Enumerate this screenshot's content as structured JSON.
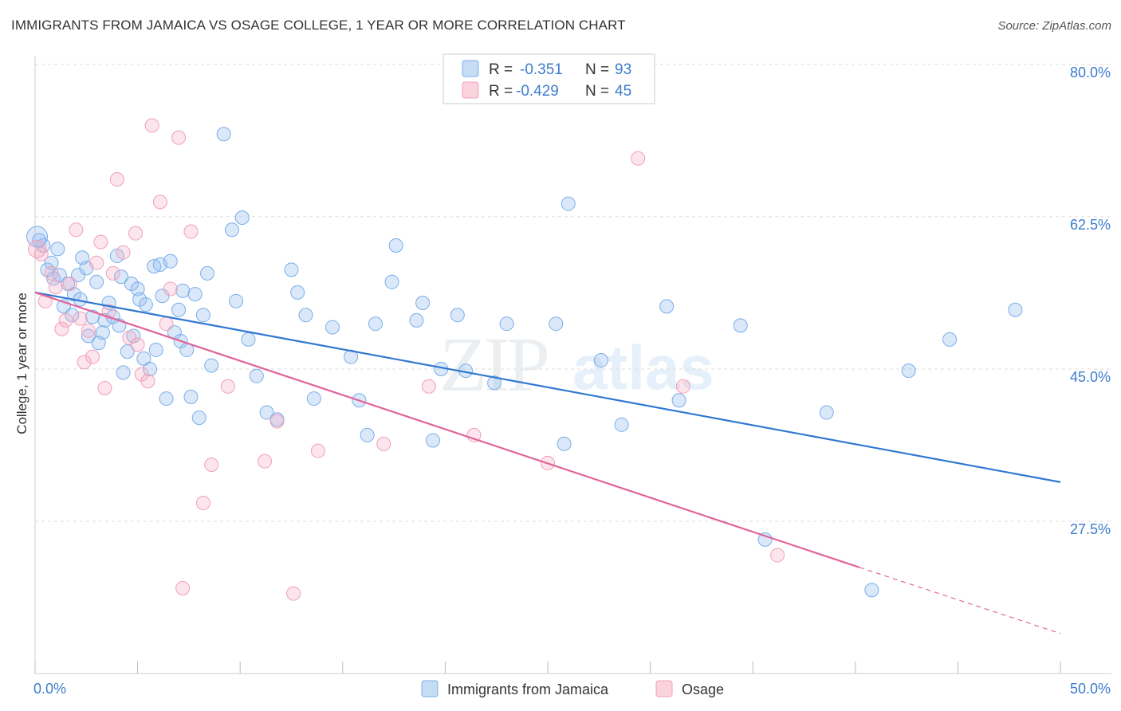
{
  "title": "IMMIGRANTS FROM JAMAICA VS OSAGE COLLEGE, 1 YEAR OR MORE CORRELATION CHART",
  "source": "Source: ZipAtlas.com",
  "watermark": {
    "zip": "ZIP",
    "atlas": "atlas"
  },
  "legend": {
    "rows": [
      {
        "r_label": "R =",
        "r_value": "-0.351",
        "n_label": "N =",
        "n_value": "93",
        "color": "#7aaee8"
      },
      {
        "r_label": "R =",
        "r_value": "-0.429",
        "n_label": "N =",
        "n_value": "45",
        "color": "#f0a0b8"
      }
    ]
  },
  "bottom_legend": [
    "Immigrants from Jamaica",
    "Osage"
  ],
  "chart_data": {
    "type": "scatter",
    "title": "IMMIGRANTS FROM JAMAICA VS OSAGE COLLEGE, 1 YEAR OR MORE CORRELATION CHART",
    "xlabel": "",
    "ylabel": "College, 1 year or more",
    "xlim": [
      0,
      50
    ],
    "ylim": [
      10,
      81
    ],
    "x_tick_labels": [
      "0.0%",
      "50.0%"
    ],
    "y_ticks": [
      27.5,
      45.0,
      62.5,
      80.0
    ],
    "y_tick_labels": [
      "27.5%",
      "45.0%",
      "62.5%",
      "80.0%"
    ],
    "grid": true,
    "series": [
      {
        "name": "Immigrants from Jamaica",
        "color": "#7aaee8",
        "trend": {
          "x": [
            0,
            50
          ],
          "y": [
            53.8,
            32.0
          ]
        },
        "points": [
          [
            0.2,
            59.8
          ],
          [
            0.4,
            59.2
          ],
          [
            0.6,
            56.4
          ],
          [
            0.8,
            57.2
          ],
          [
            0.9,
            55.4
          ],
          [
            1.1,
            58.8
          ],
          [
            1.2,
            55.8
          ],
          [
            1.4,
            52.2
          ],
          [
            1.6,
            54.8
          ],
          [
            1.8,
            51.2
          ],
          [
            1.9,
            53.6
          ],
          [
            2.1,
            55.8
          ],
          [
            2.2,
            53.0
          ],
          [
            2.3,
            57.8
          ],
          [
            2.5,
            56.6
          ],
          [
            2.6,
            48.8
          ],
          [
            2.8,
            51.0
          ],
          [
            3.0,
            55.0
          ],
          [
            3.1,
            48.0
          ],
          [
            3.3,
            49.2
          ],
          [
            3.4,
            50.6
          ],
          [
            3.6,
            52.6
          ],
          [
            3.8,
            51.0
          ],
          [
            4.0,
            58.0
          ],
          [
            4.1,
            50.0
          ],
          [
            4.2,
            55.6
          ],
          [
            4.3,
            44.6
          ],
          [
            4.5,
            47.0
          ],
          [
            4.7,
            54.8
          ],
          [
            4.8,
            48.8
          ],
          [
            5.0,
            54.2
          ],
          [
            5.1,
            53.0
          ],
          [
            5.3,
            46.2
          ],
          [
            5.4,
            52.4
          ],
          [
            5.6,
            45.0
          ],
          [
            5.8,
            56.8
          ],
          [
            5.9,
            47.2
          ],
          [
            6.1,
            57.0
          ],
          [
            6.2,
            53.4
          ],
          [
            6.4,
            41.6
          ],
          [
            6.6,
            57.4
          ],
          [
            6.8,
            49.2
          ],
          [
            7.0,
            51.8
          ],
          [
            7.1,
            48.2
          ],
          [
            7.2,
            54.0
          ],
          [
            7.4,
            47.2
          ],
          [
            7.6,
            41.8
          ],
          [
            7.8,
            53.6
          ],
          [
            8.0,
            39.4
          ],
          [
            8.2,
            51.2
          ],
          [
            8.4,
            56.0
          ],
          [
            8.6,
            45.4
          ],
          [
            9.2,
            72.0
          ],
          [
            9.6,
            61.0
          ],
          [
            9.8,
            52.8
          ],
          [
            10.1,
            62.4
          ],
          [
            10.4,
            48.4
          ],
          [
            10.8,
            44.2
          ],
          [
            11.3,
            40.0
          ],
          [
            11.8,
            39.2
          ],
          [
            12.5,
            56.4
          ],
          [
            12.8,
            53.8
          ],
          [
            13.2,
            51.2
          ],
          [
            13.6,
            41.6
          ],
          [
            14.5,
            49.8
          ],
          [
            15.4,
            46.4
          ],
          [
            15.8,
            41.4
          ],
          [
            16.2,
            37.4
          ],
          [
            16.6,
            50.2
          ],
          [
            17.4,
            55.0
          ],
          [
            17.6,
            59.2
          ],
          [
            18.6,
            50.6
          ],
          [
            18.9,
            52.6
          ],
          [
            19.4,
            36.8
          ],
          [
            19.8,
            45.0
          ],
          [
            20.6,
            51.2
          ],
          [
            21.0,
            44.8
          ],
          [
            22.4,
            43.4
          ],
          [
            23.0,
            50.2
          ],
          [
            25.4,
            50.2
          ],
          [
            25.8,
            36.4
          ],
          [
            26.0,
            64.0
          ],
          [
            27.6,
            46.0
          ],
          [
            28.6,
            38.6
          ],
          [
            30.8,
            52.2
          ],
          [
            31.4,
            41.4
          ],
          [
            34.4,
            50.0
          ],
          [
            35.6,
            25.4
          ],
          [
            38.6,
            40.0
          ],
          [
            40.8,
            19.6
          ],
          [
            42.6,
            44.8
          ],
          [
            44.6,
            48.4
          ],
          [
            47.8,
            51.8
          ]
        ]
      },
      {
        "name": "Osage",
        "color": "#f0a0b8",
        "trend": {
          "x": [
            0,
            40.2
          ],
          "y": [
            53.8,
            22.2
          ]
        },
        "trend_dashed": {
          "x": [
            40.2,
            50
          ],
          "y": [
            22.2,
            14.6
          ]
        },
        "points": [
          [
            0.3,
            58.2
          ],
          [
            0.5,
            52.8
          ],
          [
            0.8,
            56.0
          ],
          [
            1.0,
            54.4
          ],
          [
            1.3,
            49.6
          ],
          [
            1.5,
            50.6
          ],
          [
            1.7,
            54.8
          ],
          [
            2.0,
            61.0
          ],
          [
            2.2,
            50.8
          ],
          [
            2.4,
            45.8
          ],
          [
            2.6,
            49.4
          ],
          [
            2.8,
            46.4
          ],
          [
            3.0,
            57.2
          ],
          [
            3.2,
            59.6
          ],
          [
            3.4,
            42.8
          ],
          [
            3.6,
            51.6
          ],
          [
            3.8,
            56.0
          ],
          [
            4.0,
            66.8
          ],
          [
            4.3,
            58.4
          ],
          [
            4.6,
            48.6
          ],
          [
            4.9,
            60.6
          ],
          [
            5.0,
            47.8
          ],
          [
            5.2,
            44.4
          ],
          [
            5.5,
            43.6
          ],
          [
            5.7,
            73.0
          ],
          [
            6.1,
            64.2
          ],
          [
            6.4,
            50.2
          ],
          [
            6.6,
            54.2
          ],
          [
            7.0,
            71.6
          ],
          [
            7.2,
            19.8
          ],
          [
            7.6,
            60.8
          ],
          [
            8.2,
            29.6
          ],
          [
            8.6,
            34.0
          ],
          [
            9.4,
            43.0
          ],
          [
            11.2,
            34.4
          ],
          [
            11.8,
            39.0
          ],
          [
            12.6,
            19.2
          ],
          [
            13.8,
            35.6
          ],
          [
            17.0,
            36.4
          ],
          [
            19.2,
            43.0
          ],
          [
            21.4,
            37.4
          ],
          [
            25.0,
            34.2
          ],
          [
            29.4,
            69.2
          ],
          [
            31.6,
            43.0
          ],
          [
            36.2,
            23.6
          ]
        ]
      }
    ]
  }
}
